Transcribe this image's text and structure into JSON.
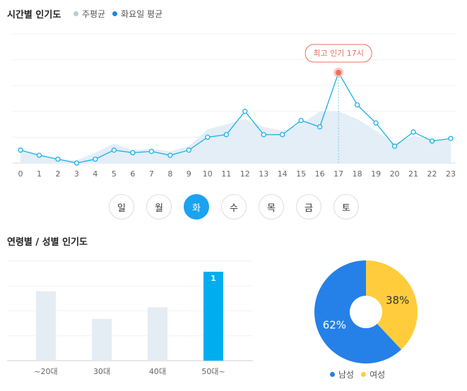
{
  "hourly": {
    "title": "시간별 인기도",
    "legend": [
      {
        "label": "주평균",
        "color": "#b9cbd6"
      },
      {
        "label": "화요일 평균",
        "color": "#1f86e0"
      }
    ],
    "peak_label": "최고 인기 17시",
    "days": [
      "일",
      "월",
      "화",
      "수",
      "목",
      "금",
      "토"
    ],
    "selected_day": "화"
  },
  "demographics": {
    "title": "연령별 / 성별 인기도"
  },
  "chart_data": [
    {
      "type": "line",
      "x": [
        "0",
        "1",
        "2",
        "3",
        "4",
        "5",
        "6",
        "7",
        "8",
        "9",
        "10",
        "11",
        "12",
        "13",
        "14",
        "15",
        "16",
        "17",
        "18",
        "19",
        "20",
        "21",
        "22",
        "23"
      ],
      "series": [
        {
          "name": "주평균",
          "type": "area",
          "color": "#e3eef7",
          "values": [
            10,
            7,
            3,
            2,
            8,
            15,
            10,
            11,
            9,
            13,
            26,
            30,
            34,
            28,
            25,
            30,
            40,
            40,
            34,
            25,
            15,
            21,
            18,
            18
          ]
        },
        {
          "name": "화요일 평균",
          "type": "line",
          "color": "#1ab0e8",
          "values": [
            10,
            6,
            3,
            0,
            3,
            10,
            8,
            9,
            6,
            10,
            20,
            22,
            40,
            22,
            22,
            33,
            28,
            70,
            45,
            31,
            13,
            24,
            17,
            19
          ]
        }
      ],
      "peak_index": 17,
      "ylim": [
        0,
        100
      ]
    },
    {
      "type": "bar",
      "categories": [
        "~20대",
        "30대",
        "40대",
        "50대~"
      ],
      "values": [
        78,
        47,
        60,
        100
      ],
      "highlight_index": 3,
      "highlight_label": "1",
      "colors": {
        "normal": "#e4ecf4",
        "highlight": "#00aeef"
      }
    },
    {
      "type": "pie",
      "slices": [
        {
          "label": "남성",
          "value": 62,
          "text": "62%",
          "color": "#2581e8"
        },
        {
          "label": "여성",
          "value": 38,
          "text": "38%",
          "color": "#ffcd3c"
        }
      ]
    }
  ]
}
